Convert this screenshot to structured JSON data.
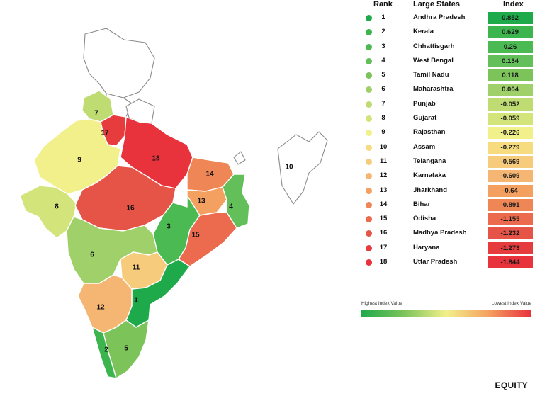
{
  "table": {
    "header": {
      "rank": "Rank",
      "state": "Large States",
      "index": "Index"
    },
    "rows": [
      {
        "rank": "1",
        "state": "Andhra Pradesh",
        "index": "0.852",
        "color": "#1eaa4b"
      },
      {
        "rank": "2",
        "state": "Kerala",
        "index": "0.629",
        "color": "#3db54e"
      },
      {
        "rank": "3",
        "state": "Chhattisgarh",
        "index": "0.26",
        "color": "#4cba52"
      },
      {
        "rank": "4",
        "state": "West Bengal",
        "index": "0.134",
        "color": "#63bf59"
      },
      {
        "rank": "5",
        "state": "Tamil Nadu",
        "index": "0.118",
        "color": "#7cc35a"
      },
      {
        "rank": "6",
        "state": "Maharashtra",
        "index": "0.004",
        "color": "#9fd06a"
      },
      {
        "rank": "7",
        "state": "Punjab",
        "index": "-0.052",
        "color": "#bfdc72"
      },
      {
        "rank": "8",
        "state": "Gujarat",
        "index": "-0.059",
        "color": "#d3e47a"
      },
      {
        "rank": "9",
        "state": "Rajasthan",
        "index": "-0.226",
        "color": "#f2f08a"
      },
      {
        "rank": "10",
        "state": "Assam",
        "index": "-0.279",
        "color": "#f6dc7e"
      },
      {
        "rank": "11",
        "state": "Telangana",
        "index": "-0.569",
        "color": "#f7cb7c"
      },
      {
        "rank": "12",
        "state": "Karnataka",
        "index": "-0.609",
        "color": "#f4b672"
      },
      {
        "rank": "13",
        "state": "Jharkhand",
        "index": "-0.64",
        "color": "#f4a060"
      },
      {
        "rank": "14",
        "state": "Bihar",
        "index": "-0.891",
        "color": "#ee8656"
      },
      {
        "rank": "15",
        "state": "Odisha",
        "index": "-1.155",
        "color": "#ec6a4e"
      },
      {
        "rank": "16",
        "state": "Madhya Pradesh",
        "index": "-1.232",
        "color": "#e65448"
      },
      {
        "rank": "17",
        "state": "Haryana",
        "index": "-1.273",
        "color": "#e63c3e"
      },
      {
        "rank": "18",
        "state": "Uttar Pradesh",
        "index": "-1.844",
        "color": "#e8323c"
      }
    ]
  },
  "legend": {
    "highest": "Highest Index Value",
    "lowest": "Lowest Index Value"
  },
  "map_labels": [
    "1",
    "2",
    "3",
    "4",
    "5",
    "6",
    "7",
    "8",
    "9",
    "10",
    "11",
    "12",
    "13",
    "14",
    "15",
    "16",
    "17",
    "18"
  ],
  "brand": "EQUITY"
}
